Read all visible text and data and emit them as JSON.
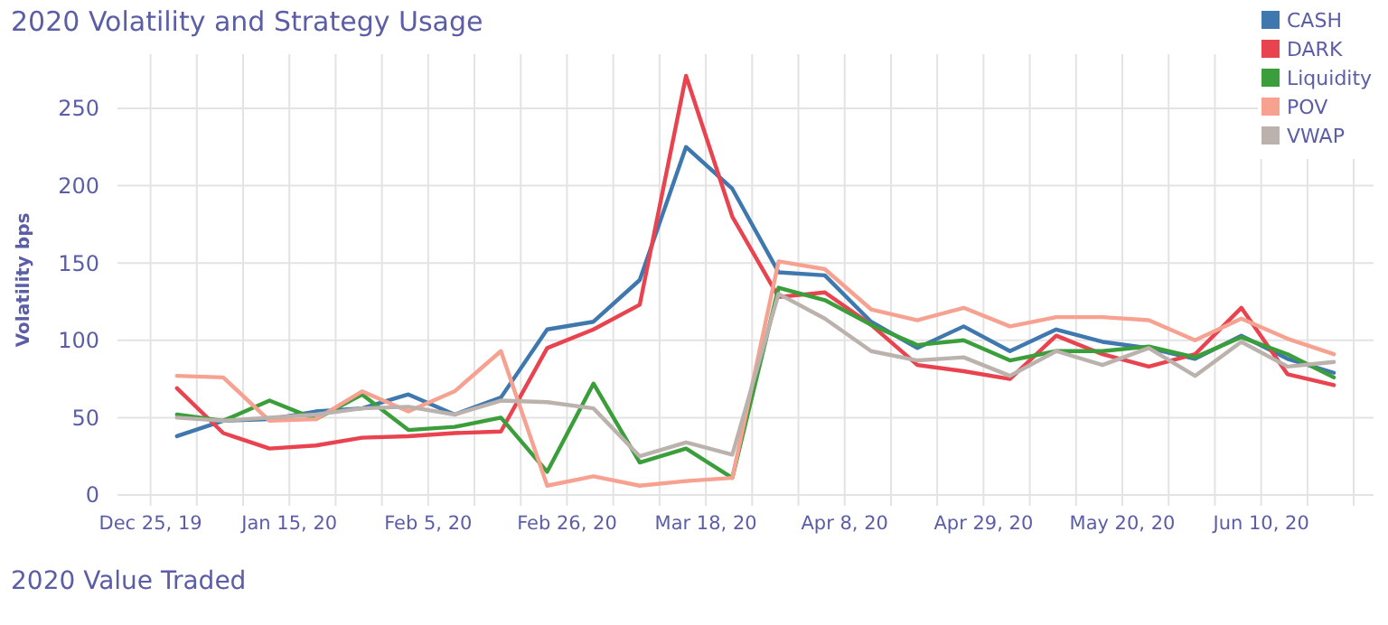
{
  "chart_data": {
    "type": "line",
    "title": "2020 Volatility and Strategy Usage",
    "ylabel": "Volatility bps",
    "x": [
      "2019-12-29",
      "2020-01-05",
      "2020-01-12",
      "2020-01-19",
      "2020-01-26",
      "2020-02-02",
      "2020-02-09",
      "2020-02-16",
      "2020-02-23",
      "2020-03-01",
      "2020-03-08",
      "2020-03-15",
      "2020-03-22",
      "2020-03-29",
      "2020-04-05",
      "2020-04-12",
      "2020-04-19",
      "2020-04-26",
      "2020-05-03",
      "2020-05-10",
      "2020-05-17",
      "2020-05-24",
      "2020-05-31",
      "2020-06-07",
      "2020-06-14",
      "2020-06-21"
    ],
    "series": [
      {
        "name": "CASH",
        "color": "#3f78ae",
        "values": [
          38,
          48,
          49,
          54,
          56,
          65,
          52,
          63,
          107,
          112,
          139,
          225,
          198,
          144,
          142,
          112,
          95,
          109,
          93,
          107,
          99,
          95,
          88,
          103,
          88,
          79
        ]
      },
      {
        "name": "DARK",
        "color": "#e8434f",
        "values": [
          69,
          40,
          30,
          32,
          37,
          38,
          40,
          41,
          95,
          107,
          123,
          271,
          180,
          128,
          131,
          110,
          84,
          80,
          75,
          103,
          91,
          83,
          91,
          121,
          78,
          71
        ]
      },
      {
        "name": "Liquidity",
        "color": "#3a9e3a",
        "values": [
          52,
          48,
          61,
          49,
          65,
          42,
          44,
          50,
          15,
          72,
          21,
          30,
          11,
          134,
          126,
          110,
          97,
          100,
          87,
          93,
          93,
          96,
          89,
          102,
          91,
          76
        ]
      },
      {
        "name": "POV",
        "color": "#f7a190",
        "values": [
          77,
          76,
          48,
          49,
          67,
          54,
          67,
          93,
          6,
          12,
          6,
          9,
          11,
          151,
          146,
          120,
          113,
          121,
          109,
          115,
          115,
          113,
          100,
          114,
          101,
          91
        ]
      },
      {
        "name": "VWAP",
        "color": "#bbb2ad",
        "values": [
          50,
          48,
          50,
          52,
          56,
          57,
          52,
          61,
          60,
          56,
          25,
          34,
          26,
          130,
          114,
          93,
          87,
          89,
          77,
          93,
          84,
          95,
          77,
          99,
          83,
          86
        ]
      }
    ],
    "xlim": [
      "2019-12-20",
      "2020-06-27"
    ],
    "xticks": [
      {
        "value": "2019-12-25",
        "label": "Dec 25, 19"
      },
      {
        "value": "2020-01-01",
        "label": null
      },
      {
        "value": "2020-01-08",
        "label": null
      },
      {
        "value": "2020-01-15",
        "label": "Jan 15, 20"
      },
      {
        "value": "2020-01-22",
        "label": null
      },
      {
        "value": "2020-01-29",
        "label": null
      },
      {
        "value": "2020-02-05",
        "label": "Feb 5, 20"
      },
      {
        "value": "2020-02-12",
        "label": null
      },
      {
        "value": "2020-02-19",
        "label": null
      },
      {
        "value": "2020-02-26",
        "label": "Feb 26, 20"
      },
      {
        "value": "2020-03-04",
        "label": null
      },
      {
        "value": "2020-03-11",
        "label": null
      },
      {
        "value": "2020-03-18",
        "label": "Mar 18, 20"
      },
      {
        "value": "2020-03-25",
        "label": null
      },
      {
        "value": "2020-04-01",
        "label": null
      },
      {
        "value": "2020-04-08",
        "label": "Apr 8, 20"
      },
      {
        "value": "2020-04-15",
        "label": null
      },
      {
        "value": "2020-04-22",
        "label": null
      },
      {
        "value": "2020-04-29",
        "label": "Apr 29, 20"
      },
      {
        "value": "2020-05-06",
        "label": null
      },
      {
        "value": "2020-05-13",
        "label": null
      },
      {
        "value": "2020-05-20",
        "label": "May 20, 20"
      },
      {
        "value": "2020-05-27",
        "label": null
      },
      {
        "value": "2020-06-03",
        "label": null
      },
      {
        "value": "2020-06-10",
        "label": "Jun 10, 20"
      },
      {
        "value": "2020-06-17",
        "label": null
      },
      {
        "value": "2020-06-24",
        "label": null
      }
    ],
    "ylim": [
      -7,
      285
    ],
    "yticks": [
      0,
      50,
      100,
      150,
      200,
      250
    ],
    "grid": true,
    "legend": "top right",
    "marker": "none",
    "line_style": "solid",
    "annotations": [
      "2020 Value Traded"
    ]
  }
}
